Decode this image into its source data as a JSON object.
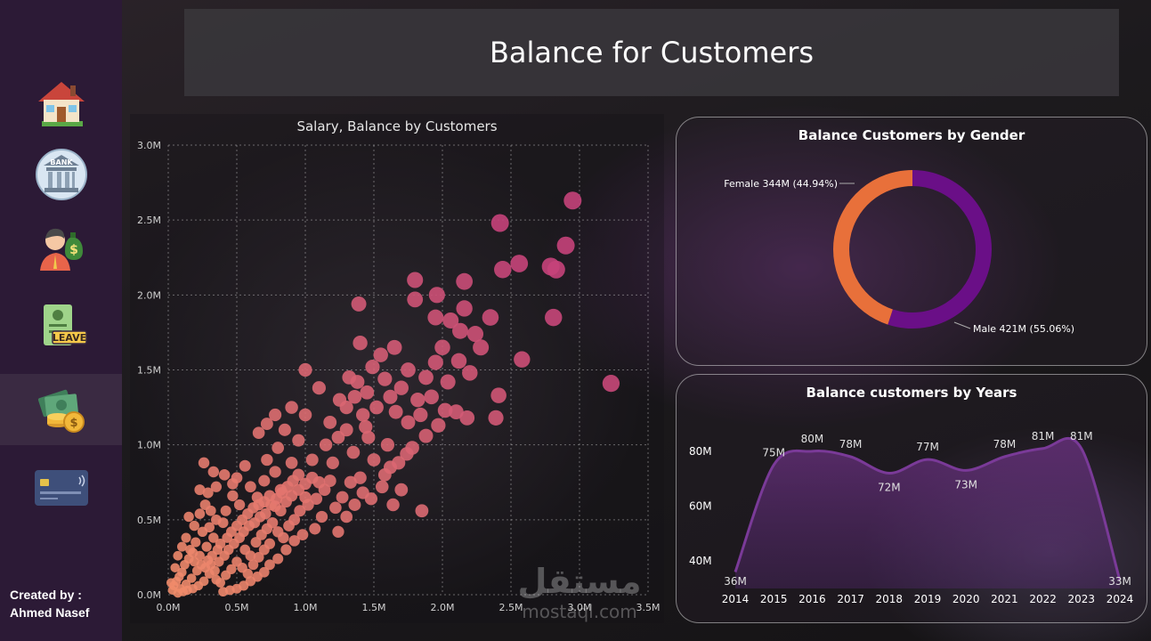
{
  "page_title": "Balance for Customers",
  "credit": {
    "line1": "Created by :",
    "line2": "Ahmed Nasef"
  },
  "sidebar": {
    "items": [
      {
        "icon": "home-icon"
      },
      {
        "icon": "bank-icon",
        "text": "BANK"
      },
      {
        "icon": "salary-person-icon"
      },
      {
        "icon": "leave-icon",
        "text": "LEAVE"
      },
      {
        "icon": "money-icon",
        "active": true
      },
      {
        "icon": "credit-card-icon"
      }
    ]
  },
  "watermark": {
    "arabic": "مستقل",
    "latin": "mostaql.com"
  },
  "colors": {
    "sidebar": "#2c1a36",
    "female": "#e8703a",
    "male": "#6a0f87",
    "line": "#7a3a98",
    "scatter_low": "#f08d6a",
    "scatter_high": "#c5437a"
  },
  "chart_data": [
    {
      "type": "scatter",
      "title": "Salary, Balance by Customers",
      "xlabel": "",
      "ylabel": "",
      "xlim": [
        0,
        3500000
      ],
      "ylim": [
        0,
        3000000
      ],
      "x_ticks": [
        "0.0M",
        "0.5M",
        "1.0M",
        "1.5M",
        "2.0M",
        "2.5M",
        "3.0M",
        "3.5M"
      ],
      "y_ticks": [
        "0.0M",
        "0.5M",
        "1.0M",
        "1.5M",
        "2.0M",
        "2.5M",
        "3.0M"
      ],
      "grid": true,
      "points": [
        [
          2950000,
          2630000
        ],
        [
          2420000,
          2480000
        ],
        [
          2900000,
          2330000
        ],
        [
          2560000,
          2210000
        ],
        [
          2440000,
          2170000
        ],
        [
          2790000,
          2190000
        ],
        [
          2830000,
          2170000
        ],
        [
          1800000,
          2100000
        ],
        [
          2160000,
          2090000
        ],
        [
          1960000,
          2000000
        ],
        [
          1800000,
          1970000
        ],
        [
          1390000,
          1940000
        ],
        [
          2160000,
          1910000
        ],
        [
          2350000,
          1850000
        ],
        [
          2810000,
          1850000
        ],
        [
          1950000,
          1850000
        ],
        [
          2060000,
          1830000
        ],
        [
          2130000,
          1760000
        ],
        [
          1400000,
          1680000
        ],
        [
          2580000,
          1570000
        ],
        [
          3230000,
          1410000
        ],
        [
          1000000,
          1500000
        ],
        [
          2240000,
          1740000
        ],
        [
          2280000,
          1650000
        ],
        [
          2410000,
          1330000
        ],
        [
          2390000,
          1180000
        ],
        [
          1970000,
          1130000
        ],
        [
          2020000,
          1230000
        ],
        [
          1880000,
          1450000
        ],
        [
          1750000,
          1500000
        ],
        [
          1650000,
          1650000
        ],
        [
          1550000,
          1600000
        ],
        [
          1490000,
          1520000
        ],
        [
          1320000,
          1450000
        ],
        [
          1700000,
          1380000
        ],
        [
          1820000,
          1300000
        ],
        [
          2180000,
          1180000
        ],
        [
          2100000,
          1220000
        ],
        [
          1880000,
          1060000
        ],
        [
          1750000,
          1150000
        ],
        [
          1520000,
          1250000
        ],
        [
          1420000,
          1200000
        ],
        [
          1250000,
          1300000
        ],
        [
          1100000,
          1380000
        ],
        [
          1000000,
          1200000
        ],
        [
          900000,
          1250000
        ],
        [
          1300000,
          1100000
        ],
        [
          1600000,
          1000000
        ],
        [
          1740000,
          940000
        ],
        [
          1850000,
          560000
        ],
        [
          1580000,
          800000
        ],
        [
          1400000,
          780000
        ],
        [
          1480000,
          640000
        ],
        [
          1270000,
          650000
        ],
        [
          1330000,
          750000
        ],
        [
          1050000,
          900000
        ],
        [
          1150000,
          1000000
        ],
        [
          950000,
          1030000
        ],
        [
          850000,
          1100000
        ],
        [
          800000,
          980000
        ],
        [
          1200000,
          880000
        ],
        [
          1350000,
          950000
        ],
        [
          1460000,
          1050000
        ],
        [
          1500000,
          900000
        ],
        [
          1620000,
          850000
        ],
        [
          1700000,
          700000
        ],
        [
          1100000,
          750000
        ],
        [
          1000000,
          650000
        ],
        [
          950000,
          800000
        ],
        [
          900000,
          880000
        ],
        [
          820000,
          700000
        ],
        [
          780000,
          820000
        ],
        [
          720000,
          900000
        ],
        [
          700000,
          760000
        ],
        [
          650000,
          650000
        ],
        [
          600000,
          720000
        ],
        [
          560000,
          860000
        ],
        [
          500000,
          780000
        ],
        [
          520000,
          600000
        ],
        [
          470000,
          660000
        ],
        [
          420000,
          560000
        ],
        [
          400000,
          480000
        ],
        [
          350000,
          500000
        ],
        [
          300000,
          450000
        ],
        [
          330000,
          380000
        ],
        [
          250000,
          420000
        ],
        [
          200000,
          350000
        ],
        [
          280000,
          320000
        ],
        [
          180000,
          280000
        ],
        [
          150000,
          240000
        ],
        [
          120000,
          200000
        ],
        [
          100000,
          150000
        ],
        [
          80000,
          120000
        ],
        [
          60000,
          90000
        ],
        [
          40000,
          60000
        ],
        [
          90000,
          40000
        ],
        [
          130000,
          70000
        ],
        [
          170000,
          110000
        ],
        [
          210000,
          160000
        ],
        [
          240000,
          200000
        ],
        [
          290000,
          230000
        ],
        [
          320000,
          260000
        ],
        [
          360000,
          300000
        ],
        [
          380000,
          340000
        ],
        [
          430000,
          380000
        ],
        [
          460000,
          420000
        ],
        [
          500000,
          460000
        ],
        [
          540000,
          500000
        ],
        [
          580000,
          540000
        ],
        [
          620000,
          580000
        ],
        [
          660000,
          600000
        ],
        [
          700000,
          620000
        ],
        [
          740000,
          660000
        ],
        [
          780000,
          590000
        ],
        [
          820000,
          560000
        ],
        [
          860000,
          620000
        ],
        [
          900000,
          660000
        ],
        [
          950000,
          700000
        ],
        [
          1000000,
          740000
        ],
        [
          1050000,
          780000
        ],
        [
          560000,
          300000
        ],
        [
          600000,
          260000
        ],
        [
          640000,
          350000
        ],
        [
          680000,
          400000
        ],
        [
          720000,
          440000
        ],
        [
          760000,
          480000
        ],
        [
          800000,
          420000
        ],
        [
          840000,
          380000
        ],
        [
          880000,
          460000
        ],
        [
          920000,
          500000
        ],
        [
          960000,
          560000
        ],
        [
          1020000,
          600000
        ],
        [
          1080000,
          640000
        ],
        [
          1140000,
          700000
        ],
        [
          1180000,
          760000
        ],
        [
          260000,
          880000
        ],
        [
          330000,
          820000
        ],
        [
          780000,
          1200000
        ],
        [
          720000,
          1140000
        ],
        [
          660000,
          1080000
        ],
        [
          1220000,
          580000
        ],
        [
          1120000,
          520000
        ],
        [
          1070000,
          440000
        ],
        [
          980000,
          400000
        ],
        [
          920000,
          360000
        ],
        [
          860000,
          300000
        ],
        [
          800000,
          240000
        ],
        [
          740000,
          200000
        ],
        [
          700000,
          150000
        ],
        [
          650000,
          120000
        ],
        [
          600000,
          90000
        ],
        [
          550000,
          60000
        ],
        [
          500000,
          40000
        ],
        [
          450000,
          30000
        ],
        [
          400000,
          20000
        ],
        [
          350000,
          100000
        ],
        [
          300000,
          140000
        ],
        [
          260000,
          90000
        ],
        [
          220000,
          60000
        ],
        [
          180000,
          40000
        ],
        [
          140000,
          30000
        ],
        [
          110000,
          20000
        ],
        [
          70000,
          10000
        ],
        [
          30000,
          30000
        ],
        [
          20000,
          80000
        ],
        [
          50000,
          180000
        ],
        [
          70000,
          260000
        ],
        [
          100000,
          320000
        ],
        [
          130000,
          380000
        ],
        [
          160000,
          300000
        ],
        [
          190000,
          220000
        ],
        [
          230000,
          260000
        ],
        [
          270000,
          180000
        ],
        [
          310000,
          200000
        ],
        [
          340000,
          160000
        ],
        [
          370000,
          220000
        ],
        [
          410000,
          260000
        ],
        [
          440000,
          300000
        ],
        [
          480000,
          340000
        ],
        [
          520000,
          380000
        ],
        [
          550000,
          420000
        ],
        [
          590000,
          460000
        ],
        [
          630000,
          480000
        ],
        [
          670000,
          520000
        ],
        [
          710000,
          540000
        ],
        [
          750000,
          600000
        ],
        [
          790000,
          640000
        ],
        [
          830000,
          680000
        ],
        [
          870000,
          720000
        ],
        [
          910000,
          760000
        ],
        [
          1240000,
          420000
        ],
        [
          1300000,
          520000
        ],
        [
          1360000,
          600000
        ],
        [
          1420000,
          680000
        ],
        [
          1560000,
          720000
        ],
        [
          1640000,
          600000
        ],
        [
          1680000,
          880000
        ],
        [
          1780000,
          980000
        ],
        [
          1840000,
          1200000
        ],
        [
          1920000,
          1320000
        ],
        [
          2040000,
          1420000
        ],
        [
          2120000,
          1560000
        ],
        [
          2200000,
          1480000
        ],
        [
          2000000,
          1650000
        ],
        [
          1950000,
          1550000
        ],
        [
          1450000,
          1350000
        ],
        [
          1380000,
          1420000
        ],
        [
          1580000,
          1440000
        ],
        [
          1620000,
          1320000
        ],
        [
          1660000,
          1220000
        ],
        [
          1240000,
          1050000
        ],
        [
          1180000,
          1150000
        ],
        [
          1300000,
          1250000
        ],
        [
          1360000,
          1320000
        ],
        [
          1440000,
          1120000
        ],
        [
          380000,
          80000
        ],
        [
          420000,
          130000
        ],
        [
          460000,
          170000
        ],
        [
          500000,
          220000
        ],
        [
          540000,
          180000
        ],
        [
          580000,
          140000
        ],
        [
          620000,
          200000
        ],
        [
          660000,
          250000
        ],
        [
          700000,
          300000
        ],
        [
          740000,
          340000
        ],
        [
          150000,
          520000
        ],
        [
          190000,
          460000
        ],
        [
          230000,
          540000
        ],
        [
          270000,
          600000
        ],
        [
          310000,
          560000
        ],
        [
          230000,
          700000
        ],
        [
          290000,
          680000
        ],
        [
          350000,
          720000
        ],
        [
          410000,
          800000
        ],
        [
          470000,
          740000
        ]
      ]
    },
    {
      "type": "pie",
      "variant": "donut",
      "title": "Balance Customers by Gender",
      "slices": [
        {
          "label": "Female",
          "value": 344,
          "display": "Female 344M (44.94%)"
        },
        {
          "label": "Male",
          "value": 421,
          "display": "Male 421M (55.06%)"
        }
      ],
      "unit": "M"
    },
    {
      "type": "area",
      "title": "Balance customers by Years",
      "x": [
        "2014",
        "2015",
        "2016",
        "2017",
        "2018",
        "2019",
        "2020",
        "2021",
        "2022",
        "2023",
        "2024"
      ],
      "values": [
        36,
        75,
        80,
        78,
        72,
        77,
        73,
        78,
        81,
        81,
        33
      ],
      "value_labels": [
        "36M",
        "75M",
        "80M",
        "78M",
        "72M",
        "77M",
        "73M",
        "78M",
        "81M",
        "81M",
        "33M"
      ],
      "y_ticks": [
        "40M",
        "60M",
        "80M"
      ],
      "ylim": [
        30,
        90
      ],
      "grid": false
    }
  ]
}
